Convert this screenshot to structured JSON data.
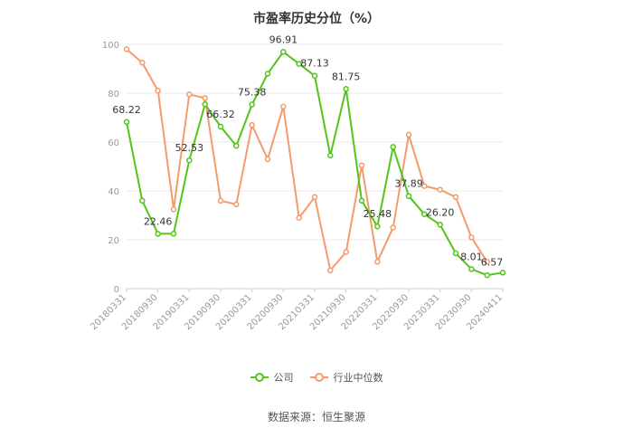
{
  "chart_data": {
    "type": "line",
    "title": "市盈率历史分位（%）",
    "source": "数据来源：恒生聚源",
    "ylim": [
      0,
      100
    ],
    "yticks": [
      0,
      20,
      40,
      60,
      80,
      100
    ],
    "xtick_labels": [
      "20180331",
      "20180930",
      "20190331",
      "20190930",
      "20200331",
      "20200930",
      "20210331",
      "20210930",
      "20220331",
      "20220930",
      "20230331",
      "20230930",
      "20240411"
    ],
    "grid": true,
    "legend_position": "bottom",
    "series": [
      {
        "name": "公司",
        "color": "#52c41a",
        "values": [
          68.22,
          36,
          22.46,
          22.5,
          52.53,
          75.5,
          66.32,
          58.5,
          75.38,
          88,
          96.91,
          92,
          87.13,
          54.5,
          81.75,
          36,
          25.48,
          58,
          37.89,
          30.5,
          26.2,
          14.5,
          8.01,
          5.5,
          6.57
        ],
        "labels": {
          "0": "68.22",
          "2": "22.46",
          "4": "52.53",
          "6": "66.32",
          "8": "75.38",
          "10": "96.91",
          "12": "87.13",
          "14": "81.75",
          "16": "25.48",
          "18": "37.89",
          "20": "26.20",
          "22": "8.01",
          "24": "6.57"
        }
      },
      {
        "name": "行业中位数",
        "color": "#f59a6b",
        "values": [
          98,
          92.5,
          81,
          32.5,
          79.5,
          78,
          36,
          34.5,
          67,
          53,
          74.5,
          29,
          37.5,
          7.5,
          15,
          50.5,
          11,
          25,
          63,
          42,
          40.5,
          37.5,
          21,
          11,
          null
        ]
      }
    ]
  }
}
